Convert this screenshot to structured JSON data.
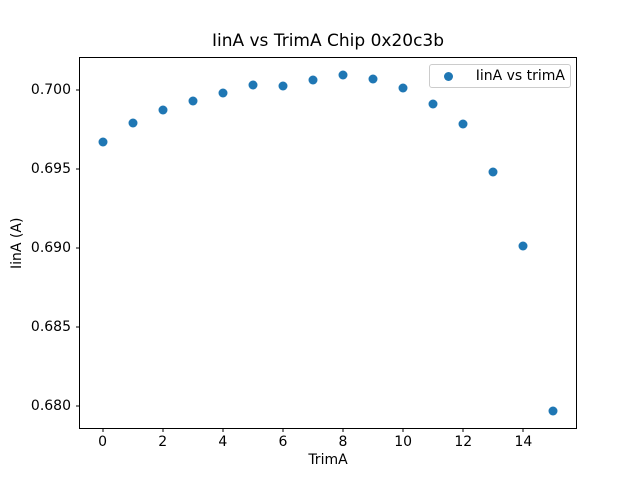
{
  "figure": {
    "title": "IinA vs TrimA Chip 0x20c3b",
    "xlabel": "TrimA",
    "ylabel": "IinA (A)"
  },
  "legend": {
    "label": "IinA vs trimA"
  },
  "colors": {
    "marker": "#1f77b4",
    "spine": "#000000",
    "legend_border": "#cccccc",
    "background": "#ffffff"
  },
  "chart_data": {
    "type": "scatter",
    "title": "IinA vs TrimA Chip 0x20c3b",
    "xlabel": "TrimA",
    "ylabel": "IinA (A)",
    "legend_entries": [
      "IinA vs trimA"
    ],
    "legend_position": "upper right",
    "grid": false,
    "x": [
      0,
      1,
      2,
      3,
      4,
      5,
      6,
      7,
      8,
      9,
      10,
      11,
      12,
      13,
      14,
      15
    ],
    "y": [
      0.6967,
      0.6979,
      0.6987,
      0.6993,
      0.6998,
      0.7003,
      0.7002,
      0.7006,
      0.7009,
      0.7007,
      0.7001,
      0.6991,
      0.6978,
      0.6948,
      0.6901,
      0.6797
    ],
    "xlim": [
      -0.75,
      15.75
    ],
    "ylim": [
      0.6786,
      0.702
    ],
    "xticks": [
      0,
      2,
      4,
      6,
      8,
      10,
      12,
      14
    ],
    "xtick_labels": [
      "0",
      "2",
      "4",
      "6",
      "8",
      "10",
      "12",
      "14"
    ],
    "yticks": [
      0.68,
      0.685,
      0.69,
      0.695,
      0.7
    ],
    "ytick_labels": [
      "0.680",
      "0.685",
      "0.690",
      "0.695",
      "0.700"
    ]
  }
}
